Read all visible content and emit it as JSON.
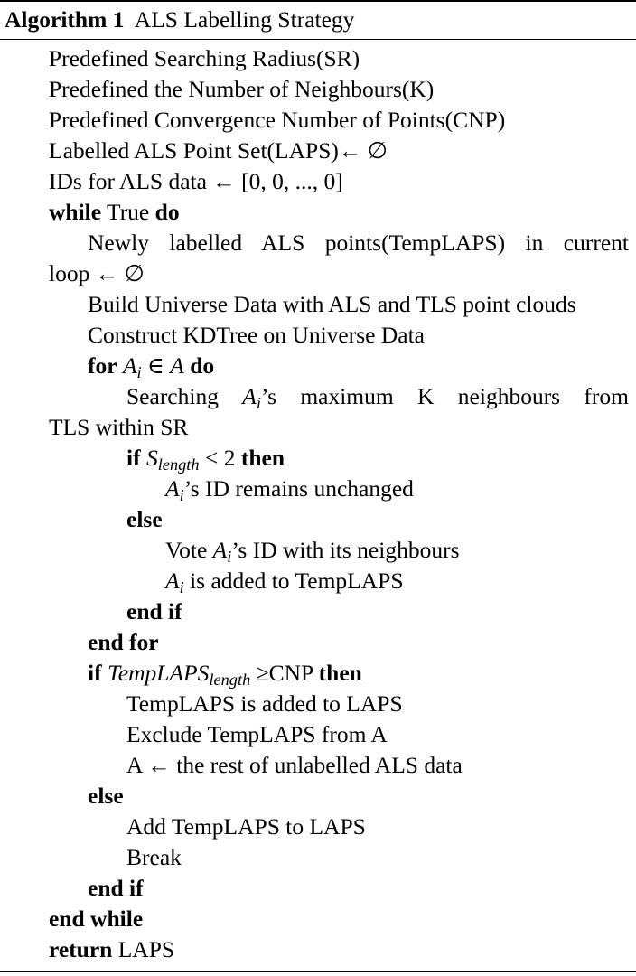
{
  "algorithm": {
    "label": "Algorithm 1",
    "title": "ALS Labelling Strategy"
  },
  "keywords": {
    "while": "while",
    "do": "do",
    "for": "for",
    "if": "if",
    "then": "then",
    "else": "else",
    "end_if": "end if",
    "end_for": "end for",
    "end_while": "end while",
    "return": "return"
  },
  "lines": {
    "sr": "Predefined Searching Radius(SR)",
    "k": "Predefined the Number of Neighbours(K)",
    "cnp": "Predefined Convergence Number of Points(CNP)",
    "laps_init": "Labelled ALS Point Set(LAPS)← ∅",
    "ids_init": "IDs for ALS data ← [0, 0, ..., 0]",
    "while_cond": "True",
    "templaps_a": "Newly labelled ALS points(TempLAPS) in current",
    "templaps_b": "loop ← ∅",
    "build_universe": "Build Universe Data with ALS and TLS point clouds",
    "kdtree": "Construct KDTree on Universe Data",
    "for_var": "A",
    "for_sub": "i",
    "for_in": " ∈ ",
    "for_set": "A",
    "search_a_pre": "Searching ",
    "search_a_post": "’s maximum K neighbours from",
    "search_b": "TLS within SR",
    "if1_var": "S",
    "if1_sub": "length",
    "if1_rest": " < 2 ",
    "id_unchanged": "’s ID remains unchanged",
    "vote_pre": "Vote ",
    "vote_post": "’s ID with its neighbours",
    "added_post": " is added to TempLAPS",
    "if2_var": "TempLAPS",
    "if2_sub": "length",
    "if2_rest": " ≥CNP ",
    "templaps_to_laps": "TempLAPS is added to LAPS",
    "exclude": "Exclude TempLAPS from A",
    "a_rest": "A ← the rest of unlabelled ALS data",
    "add_templaps": "Add TempLAPS to LAPS",
    "break": "Break",
    "return_val": " LAPS"
  }
}
